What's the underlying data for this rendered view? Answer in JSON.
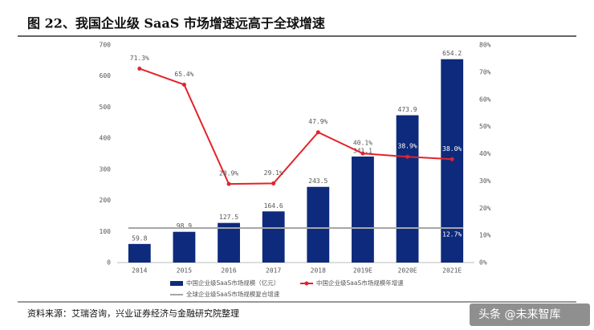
{
  "title": "图 22、我国企业级 SaaS 市场增速远高于全球增速",
  "source": "资料来源：艾瑞咨询，兴业证券经济与金融研究院整理",
  "watermark": "头条 @未来智库",
  "chart_data": {
    "type": "bar_line",
    "categories": [
      "2014",
      "2015",
      "2016",
      "2017",
      "2018",
      "2019E",
      "2020E",
      "2021E"
    ],
    "series": [
      {
        "name": "中国企业级SaaS市场规模（亿元）",
        "type": "bar",
        "color": "#0e2a7c",
        "values": [
          59.8,
          98.9,
          127.5,
          164.6,
          243.5,
          341.1,
          473.9,
          654.2
        ]
      },
      {
        "name": "中国企业级SaaS市场规模年增速",
        "type": "line",
        "axis": "y2",
        "color": "#e3232a",
        "values": [
          71.3,
          65.4,
          28.9,
          29.1,
          47.9,
          40.1,
          38.9,
          38.0
        ],
        "value_labels": [
          "71.3%",
          "65.4%",
          "28.9%",
          "29.1%",
          "47.9%",
          "40.1%",
          "38.9%",
          "38.0%"
        ]
      },
      {
        "name": "全球企业级SaaS市场规模复合增速",
        "type": "flat",
        "axis": "y2",
        "color": "#a6a6a6",
        "values": [
          12.7,
          12.7,
          12.7,
          12.7,
          12.7,
          12.7,
          12.7,
          12.7
        ],
        "value_labels": [
          null,
          null,
          null,
          null,
          null,
          null,
          null,
          "12.7%"
        ]
      }
    ],
    "ylim": [
      0,
      700
    ],
    "yticks": [
      0,
      100,
      200,
      300,
      400,
      500,
      600,
      700
    ],
    "y2lim": [
      0,
      80
    ],
    "y2ticks": [
      {
        "value": 0,
        "label": "0%"
      },
      {
        "value": 10,
        "label": "10%"
      },
      {
        "value": 20,
        "label": "20%"
      },
      {
        "value": 30,
        "label": "30%"
      },
      {
        "value": 40,
        "label": "40%"
      },
      {
        "value": 50,
        "label": "50%"
      },
      {
        "value": 60,
        "label": "60%"
      },
      {
        "value": 70,
        "label": "70%"
      },
      {
        "value": 80,
        "label": "80%"
      }
    ],
    "legend": "bottom"
  }
}
